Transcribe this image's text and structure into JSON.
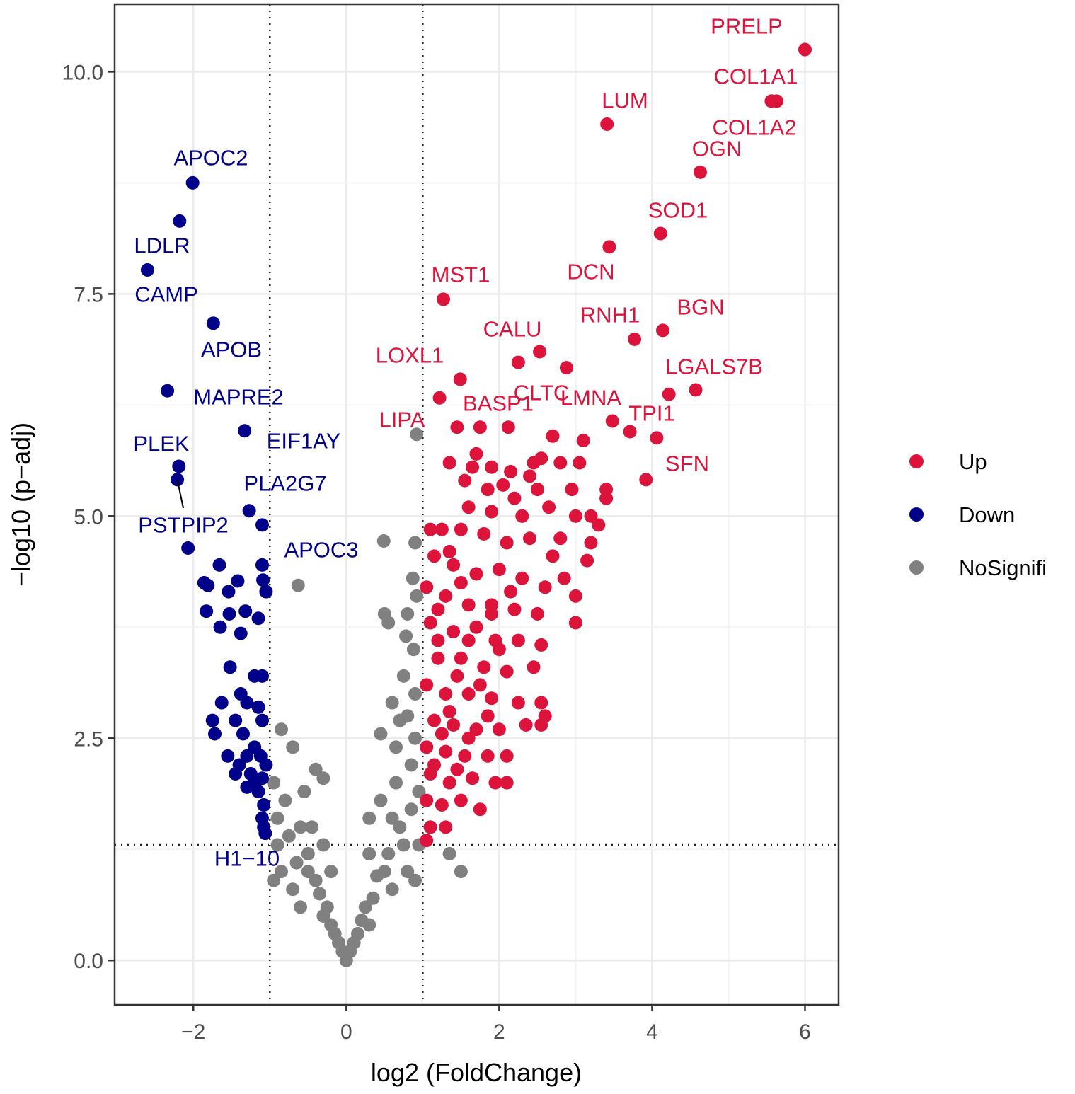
{
  "chart_data": {
    "type": "scatter",
    "title": "",
    "xlabel": "log2 (FoldChange)",
    "ylabel": "−log10 (p−adj)",
    "xlim": [
      -3.03,
      6.44
    ],
    "ylim": [
      -0.5,
      10.76
    ],
    "xticks": [
      -2,
      0,
      2,
      4,
      6
    ],
    "xtick_labels": [
      "−2",
      "0",
      "2",
      "4",
      "6"
    ],
    "yticks": [
      0,
      2.5,
      5,
      7.5,
      10
    ],
    "ytick_labels": [
      "0.0",
      "2.5",
      "5.0",
      "7.5",
      "10.0"
    ],
    "grid": true,
    "thresholds": {
      "log2fc": [
        -1,
        1
      ],
      "neglog10_padj": 1.3
    },
    "legend": {
      "placement": "right",
      "entries": [
        {
          "name": "Up",
          "color": "#DC143C"
        },
        {
          "name": "Down",
          "color": "#00008B"
        },
        {
          "name": "NoSignifi",
          "color": "#808080"
        }
      ]
    },
    "labeled_points": [
      {
        "gene": "PRELP",
        "group": "Up",
        "x": 6.0,
        "y": 10.25
      },
      {
        "gene": "COL1A1",
        "group": "Up",
        "x": 5.63,
        "y": 9.67
      },
      {
        "gene": "COL1A2",
        "group": "Up",
        "x": 5.56,
        "y": 9.67
      },
      {
        "gene": "LUM",
        "group": "Up",
        "x": 3.41,
        "y": 9.41
      },
      {
        "gene": "OGN",
        "group": "Up",
        "x": 4.63,
        "y": 8.87
      },
      {
        "gene": "SOD1",
        "group": "Up",
        "x": 4.11,
        "y": 8.18
      },
      {
        "gene": "DCN",
        "group": "Up",
        "x": 3.44,
        "y": 8.03
      },
      {
        "gene": "MST1",
        "group": "Up",
        "x": 1.27,
        "y": 7.44
      },
      {
        "gene": "BGN",
        "group": "Up",
        "x": 4.14,
        "y": 7.09
      },
      {
        "gene": "RNH1",
        "group": "Up",
        "x": 3.77,
        "y": 6.99
      },
      {
        "gene": "CALU",
        "group": "Up",
        "x": 2.53,
        "y": 6.85
      },
      {
        "gene": "LOXL1",
        "group": "Up",
        "x": 1.49,
        "y": 6.54
      },
      {
        "gene": "LGALS7B",
        "group": "Up",
        "x": 4.57,
        "y": 6.42
      },
      {
        "gene": "LMNA",
        "group": "Up",
        "x": 4.22,
        "y": 6.37
      },
      {
        "gene": "CLTC",
        "group": "Up",
        "x": 2.88,
        "y": 6.67
      },
      {
        "gene": "BASP1",
        "group": "Up",
        "x": 2.25,
        "y": 6.73
      },
      {
        "gene": "TPI1",
        "group": "Up",
        "x": 3.48,
        "y": 6.07
      },
      {
        "gene": "SFN",
        "group": "Up",
        "x": 3.92,
        "y": 5.41
      },
      {
        "gene": "LIPA",
        "group": "NoSignifi",
        "x": 0.92,
        "y": 5.92
      },
      {
        "gene": "APOC2",
        "group": "Down",
        "x": -2.01,
        "y": 8.75
      },
      {
        "gene": "LDLR",
        "group": "Down",
        "x": -2.18,
        "y": 8.32
      },
      {
        "gene": "CAMP",
        "group": "Down",
        "x": -2.6,
        "y": 7.77
      },
      {
        "gene": "APOB",
        "group": "Down",
        "x": -1.74,
        "y": 7.17
      },
      {
        "gene": "MAPRE2",
        "group": "Down",
        "x": -2.34,
        "y": 6.41
      },
      {
        "gene": "EIF1AY",
        "group": "Down",
        "x": -1.33,
        "y": 5.96
      },
      {
        "gene": "PLEK",
        "group": "Down",
        "x": -2.19,
        "y": 5.56
      },
      {
        "gene": "PSTPIP2",
        "group": "Down",
        "x": -2.21,
        "y": 5.41
      },
      {
        "gene": "PLA2G7",
        "group": "Down",
        "x": -1.27,
        "y": 5.06
      },
      {
        "gene": "APOC3",
        "group": "Down",
        "x": -1.1,
        "y": 4.9
      },
      {
        "gene": "H1−10",
        "group": "Down",
        "x": -1.06,
        "y": 1.43
      }
    ],
    "points": {
      "NoSignifi": [
        [
          -0.63,
          4.22
        ],
        [
          0.49,
          4.72
        ],
        [
          0.9,
          4.7
        ],
        [
          0.87,
          4.3
        ],
        [
          0.5,
          3.9
        ],
        [
          0.55,
          3.8
        ],
        [
          0.78,
          3.65
        ],
        [
          0.88,
          3.5
        ],
        [
          0.75,
          3.2
        ],
        [
          0.9,
          3.0
        ],
        [
          0.6,
          2.9
        ],
        [
          0.8,
          2.75
        ],
        [
          -0.85,
          2.6
        ],
        [
          -0.7,
          2.4
        ],
        [
          -0.4,
          2.15
        ],
        [
          -0.3,
          2.05
        ],
        [
          0.45,
          2.55
        ],
        [
          0.65,
          2.4
        ],
        [
          0.85,
          2.2
        ],
        [
          0.95,
          1.9
        ],
        [
          -0.95,
          2.0
        ],
        [
          -0.8,
          1.8
        ],
        [
          -0.6,
          1.5
        ],
        [
          -0.9,
          1.3
        ],
        [
          -0.5,
          1.2
        ],
        [
          -0.3,
          1.3
        ],
        [
          -0.4,
          0.9
        ],
        [
          -0.25,
          0.6
        ],
        [
          -0.15,
          0.3
        ],
        [
          -0.05,
          0.1
        ],
        [
          0,
          0
        ],
        [
          0.05,
          0.1
        ],
        [
          0.15,
          0.3
        ],
        [
          0.25,
          0.6
        ],
        [
          0.4,
          0.95
        ],
        [
          0.55,
          1.2
        ],
        [
          0.7,
          1.5
        ],
        [
          0.85,
          1.7
        ],
        [
          1.1,
          1.5
        ],
        [
          1.35,
          1.2
        ],
        [
          1.5,
          1.0
        ],
        [
          -0.7,
          0.8
        ],
        [
          -0.85,
          1.0
        ],
        [
          -0.95,
          0.9
        ],
        [
          -0.6,
          0.6
        ],
        [
          0.6,
          0.8
        ],
        [
          0.8,
          1.0
        ],
        [
          0.95,
          1.3
        ],
        [
          -0.1,
          0.2
        ],
        [
          0.1,
          0.2
        ],
        [
          -0.2,
          0.4
        ],
        [
          0.2,
          0.45
        ],
        [
          -0.35,
          0.75
        ],
        [
          0.35,
          0.7
        ],
        [
          -0.5,
          1.0
        ],
        [
          0.5,
          1.0
        ],
        [
          -0.75,
          1.4
        ],
        [
          0.75,
          1.3
        ],
        [
          -0.2,
          1.0
        ],
        [
          0.3,
          1.6
        ],
        [
          0.45,
          1.8
        ],
        [
          -0.55,
          1.9
        ],
        [
          0.65,
          2.0
        ],
        [
          0.9,
          2.5
        ],
        [
          0.7,
          2.7
        ],
        [
          -0.9,
          1.6
        ],
        [
          -0.65,
          1.1
        ],
        [
          0.9,
          0.9
        ],
        [
          0.3,
          1.2
        ],
        [
          -0.45,
          1.5
        ],
        [
          0.6,
          1.6
        ],
        [
          0.8,
          3.9
        ],
        [
          0.92,
          4.1
        ],
        [
          -0.3,
          0.5
        ],
        [
          0.3,
          0.4
        ]
      ],
      "Down": [
        [
          -2.07,
          4.64
        ],
        [
          -1.66,
          4.45
        ],
        [
          -1.86,
          4.25
        ],
        [
          -1.81,
          4.22
        ],
        [
          -1.42,
          4.27
        ],
        [
          -1.1,
          4.45
        ],
        [
          -1.09,
          4.28
        ],
        [
          -1.05,
          4.15
        ],
        [
          -1.54,
          4.15
        ],
        [
          -1.83,
          3.93
        ],
        [
          -1.53,
          3.9
        ],
        [
          -1.32,
          3.93
        ],
        [
          -1.15,
          3.85
        ],
        [
          -1.65,
          3.75
        ],
        [
          -1.38,
          3.68
        ],
        [
          -1.52,
          3.3
        ],
        [
          -1.2,
          3.2
        ],
        [
          -1.1,
          3.2
        ],
        [
          -1.38,
          3.0
        ],
        [
          -1.63,
          2.9
        ],
        [
          -1.3,
          2.9
        ],
        [
          -1.15,
          2.85
        ],
        [
          -1.75,
          2.7
        ],
        [
          -1.45,
          2.7
        ],
        [
          -1.1,
          2.7
        ],
        [
          -1.35,
          2.55
        ],
        [
          -1.72,
          2.55
        ],
        [
          -1.2,
          2.4
        ],
        [
          -1.55,
          2.3
        ],
        [
          -1.3,
          2.3
        ],
        [
          -1.12,
          2.3
        ],
        [
          -1.05,
          2.2
        ],
        [
          -1.45,
          2.1
        ],
        [
          -1.25,
          2.1
        ],
        [
          -1.1,
          2.05
        ],
        [
          -1.3,
          1.95
        ],
        [
          -1.15,
          1.9
        ],
        [
          -1.08,
          1.75
        ],
        [
          -1.1,
          1.6
        ],
        [
          -1.08,
          1.5
        ],
        [
          -1.2,
          2.0
        ],
        [
          -1.4,
          2.2
        ]
      ],
      "Up": [
        [
          1.22,
          6.33
        ],
        [
          1.45,
          6.0
        ],
        [
          1.75,
          6.0
        ],
        [
          2.12,
          6.0
        ],
        [
          2.7,
          5.9
        ],
        [
          3.1,
          5.85
        ],
        [
          3.71,
          5.95
        ],
        [
          4.06,
          5.88
        ],
        [
          1.35,
          5.6
        ],
        [
          1.65,
          5.55
        ],
        [
          1.9,
          5.55
        ],
        [
          2.15,
          5.5
        ],
        [
          2.45,
          5.6
        ],
        [
          2.55,
          5.65
        ],
        [
          2.8,
          5.6
        ],
        [
          3.05,
          5.6
        ],
        [
          1.55,
          5.4
        ],
        [
          1.85,
          5.3
        ],
        [
          2.2,
          5.2
        ],
        [
          2.5,
          5.3
        ],
        [
          2.95,
          5.3
        ],
        [
          3.4,
          5.3
        ],
        [
          3.4,
          5.2
        ],
        [
          1.6,
          5.1
        ],
        [
          1.9,
          5.05
        ],
        [
          2.3,
          5.0
        ],
        [
          2.65,
          5.1
        ],
        [
          3.0,
          5.0
        ],
        [
          1.1,
          4.85
        ],
        [
          1.25,
          4.85
        ],
        [
          1.5,
          4.85
        ],
        [
          1.8,
          4.8
        ],
        [
          2.1,
          4.7
        ],
        [
          2.4,
          4.75
        ],
        [
          2.8,
          4.75
        ],
        [
          3.2,
          4.7
        ],
        [
          3.3,
          4.9
        ],
        [
          1.15,
          4.55
        ],
        [
          1.4,
          4.45
        ],
        [
          1.7,
          4.35
        ],
        [
          2.0,
          4.4
        ],
        [
          2.3,
          4.3
        ],
        [
          2.6,
          4.2
        ],
        [
          2.85,
          4.3
        ],
        [
          3.15,
          4.5
        ],
        [
          1.05,
          4.2
        ],
        [
          1.3,
          4.1
        ],
        [
          1.6,
          4.0
        ],
        [
          1.9,
          4.0
        ],
        [
          2.2,
          3.95
        ],
        [
          2.5,
          3.9
        ],
        [
          3.0,
          4.1
        ],
        [
          3.0,
          3.8
        ],
        [
          1.1,
          3.8
        ],
        [
          1.4,
          3.7
        ],
        [
          1.7,
          3.75
        ],
        [
          1.95,
          3.6
        ],
        [
          2.25,
          3.6
        ],
        [
          2.55,
          3.55
        ],
        [
          1.2,
          3.4
        ],
        [
          1.5,
          3.4
        ],
        [
          1.8,
          3.3
        ],
        [
          2.1,
          3.25
        ],
        [
          2.45,
          3.3
        ],
        [
          1.05,
          3.1
        ],
        [
          1.3,
          3.0
        ],
        [
          1.6,
          3.0
        ],
        [
          1.9,
          2.95
        ],
        [
          2.25,
          2.9
        ],
        [
          2.55,
          2.9
        ],
        [
          2.6,
          2.75
        ],
        [
          1.15,
          2.7
        ],
        [
          1.4,
          2.65
        ],
        [
          1.7,
          2.6
        ],
        [
          2.0,
          2.6
        ],
        [
          2.35,
          2.65
        ],
        [
          2.55,
          2.65
        ],
        [
          1.05,
          2.4
        ],
        [
          1.3,
          2.35
        ],
        [
          1.55,
          2.3
        ],
        [
          1.85,
          2.3
        ],
        [
          2.1,
          2.3
        ],
        [
          1.1,
          2.1
        ],
        [
          1.35,
          2.0
        ],
        [
          1.65,
          2.05
        ],
        [
          1.95,
          2.0
        ],
        [
          2.1,
          2.0
        ],
        [
          1.05,
          1.8
        ],
        [
          1.25,
          1.75
        ],
        [
          1.5,
          1.8
        ],
        [
          1.75,
          1.7
        ],
        [
          1.1,
          1.5
        ],
        [
          1.3,
          1.5
        ],
        [
          1.05,
          1.35
        ],
        [
          1.2,
          3.6
        ],
        [
          1.45,
          3.2
        ],
        [
          1.75,
          3.1
        ],
        [
          2.0,
          3.5
        ],
        [
          1.35,
          2.8
        ],
        [
          1.6,
          2.5
        ],
        [
          1.85,
          2.75
        ],
        [
          1.15,
          2.2
        ],
        [
          1.45,
          2.15
        ],
        [
          1.25,
          2.55
        ],
        [
          1.6,
          3.6
        ],
        [
          1.9,
          3.9
        ],
        [
          2.15,
          4.15
        ],
        [
          1.2,
          3.95
        ],
        [
          1.5,
          4.25
        ],
        [
          1.35,
          4.6
        ],
        [
          2.7,
          4.55
        ],
        [
          2.4,
          5.45
        ],
        [
          2.05,
          5.35
        ],
        [
          1.7,
          5.7
        ],
        [
          3.2,
          5.0
        ]
      ]
    }
  }
}
